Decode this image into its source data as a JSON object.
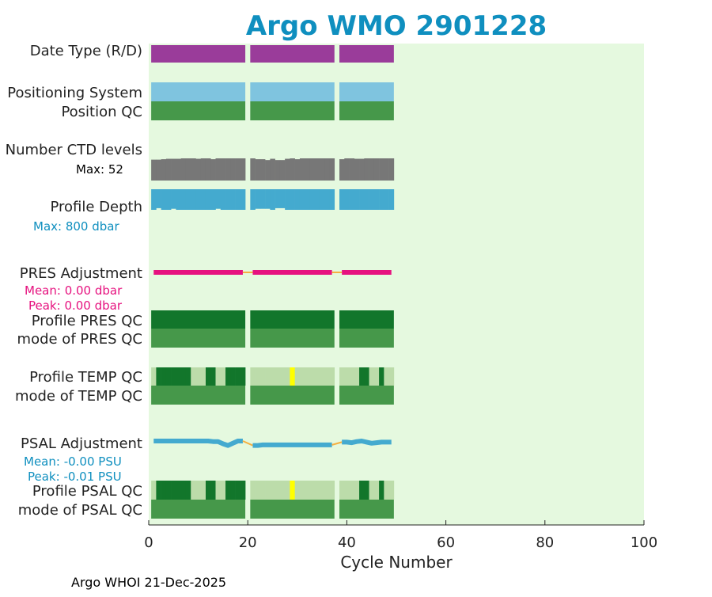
{
  "chart_data": {
    "type": "bar",
    "title": "Argo WMO 2901228",
    "xlabel": "Cycle Number",
    "xlim": [
      0,
      100
    ],
    "xticks": [
      "0",
      "20",
      "40",
      "60",
      "80",
      "100"
    ],
    "footer": "Argo WHOI 21-Dec-2025",
    "cycle_blocks": [
      [
        1,
        19
      ],
      [
        21,
        37
      ],
      [
        39,
        49
      ]
    ],
    "row_labels": {
      "date_type": "Date Type (R/D)",
      "positioning_system": "Positioning System",
      "position_qc": "Position QC",
      "ctd_levels": "Number CTD levels",
      "profile_depth": "Profile Depth",
      "pres_adjustment": "PRES Adjustment",
      "profile_pres_qc": "Profile PRES QC",
      "mode_pres_qc": "mode of PRES QC",
      "profile_temp_qc": "Profile TEMP QC",
      "mode_temp_qc": "mode of TEMP QC",
      "psal_adjustment": "PSAL Adjustment",
      "profile_psal_qc": "Profile PSAL QC",
      "mode_psal_qc": "mode of PSAL QC"
    },
    "annotations": {
      "ctd_max": "Max: 52",
      "depth_max": "Max:  800 dbar",
      "pres_mean": "Mean: 0.00 dbar",
      "pres_peak": "Peak: 0.00 dbar",
      "psal_mean": "Mean: -0.00 PSU",
      "psal_peak": "Peak: -0.01 PSU"
    },
    "ctd_levels_max": 52,
    "ctd_levels": [
      49,
      49,
      50,
      51,
      51,
      51,
      52,
      52,
      52,
      51,
      52,
      52,
      50,
      52,
      52,
      52,
      52,
      52,
      52,
      null,
      52,
      50,
      50,
      48,
      51,
      48,
      48,
      51,
      52,
      50,
      52,
      52,
      52,
      52,
      52,
      52,
      52,
      null,
      50,
      52,
      52,
      51,
      51,
      52,
      52,
      52,
      52,
      52,
      52
    ],
    "profile_depth_max_dbar": 800,
    "profile_depth_fraction": [
      1.0,
      0.92,
      1.0,
      1.0,
      0.95,
      1.0,
      1.0,
      1.0,
      1.0,
      1.0,
      1.0,
      1.0,
      1.0,
      0.95,
      1.0,
      1.0,
      1.0,
      1.0,
      1.0,
      null,
      1.0,
      0.95,
      0.95,
      0.95,
      1.0,
      0.92,
      0.92,
      1.0,
      1.0,
      1.0,
      1.0,
      1.0,
      1.0,
      1.0,
      1.0,
      1.0,
      1.0,
      null,
      1.0,
      1.0,
      1.0,
      1.0,
      1.0,
      1.0,
      1.0,
      1.0,
      1.0,
      1.0,
      1.0
    ],
    "pres_adjustment_dbar": [
      0,
      0,
      0,
      0,
      0,
      0,
      0,
      0,
      0,
      0,
      0,
      0,
      0,
      0,
      0,
      0,
      0,
      0,
      0,
      null,
      0,
      0,
      0,
      0,
      0,
      0,
      0,
      0,
      0,
      0,
      0,
      0,
      0,
      0,
      0,
      0,
      0,
      null,
      0,
      0,
      0,
      0,
      0,
      0,
      0,
      0,
      0,
      0,
      0
    ],
    "psal_adjustment_psu": [
      0,
      0,
      0,
      0,
      0,
      0,
      0,
      0,
      0,
      0,
      0,
      0,
      -0.001,
      -0.001,
      -0.005,
      -0.008,
      -0.004,
      0,
      0,
      null,
      -0.008,
      -0.008,
      -0.007,
      -0.007,
      -0.007,
      -0.007,
      -0.007,
      -0.007,
      -0.007,
      -0.007,
      -0.007,
      -0.007,
      -0.007,
      -0.007,
      -0.007,
      -0.007,
      -0.007,
      null,
      -0.002,
      -0.002,
      -0.003,
      -0.001,
      0,
      -0.002,
      -0.004,
      -0.003,
      -0.002,
      -0.002,
      -0.002
    ],
    "profile_temp_qc": [
      "B",
      "A",
      "A",
      "A",
      "A",
      "A",
      "A",
      "A",
      "B",
      "B",
      "B",
      "A",
      "A",
      "B",
      "B",
      "A",
      "A",
      "A",
      "A",
      null,
      "B",
      "B",
      "B",
      "B",
      "B",
      "B",
      "B",
      "B",
      "F",
      "B",
      "B",
      "B",
      "B",
      "B",
      "B",
      "B",
      "B",
      null,
      "B",
      "B",
      "B",
      "B",
      "A",
      "A",
      "B",
      "B",
      "A",
      "B",
      "B"
    ],
    "profile_psal_qc": [
      "B",
      "A",
      "A",
      "A",
      "A",
      "A",
      "A",
      "A",
      "B",
      "B",
      "B",
      "A",
      "A",
      "B",
      "B",
      "A",
      "A",
      "A",
      "A",
      null,
      "B",
      "B",
      "B",
      "B",
      "B",
      "B",
      "B",
      "B",
      "F",
      "B",
      "B",
      "B",
      "B",
      "B",
      "B",
      "B",
      "B",
      null,
      "B",
      "B",
      "B",
      "B",
      "A",
      "A",
      "B",
      "B",
      "A",
      "B",
      "B"
    ],
    "colors": {
      "title": "#0f8fbf",
      "plot_bg": "#e5f9df",
      "date_type": "#9a3c9a",
      "positioning": "#7fc4df",
      "qc_good": "#46984a",
      "profile_qc_a": "#12762b",
      "profile_qc_b": "#bcdcaa",
      "profile_qc_f": "#ffff00",
      "ctd": "#777777",
      "depth": "#44aacf",
      "pres_adj": "#e6127f",
      "psal_adj": "#44aacf",
      "gap_line": "#f5b041",
      "annot_blue": "#0f8fbf",
      "annot_pink": "#e6127f"
    }
  }
}
